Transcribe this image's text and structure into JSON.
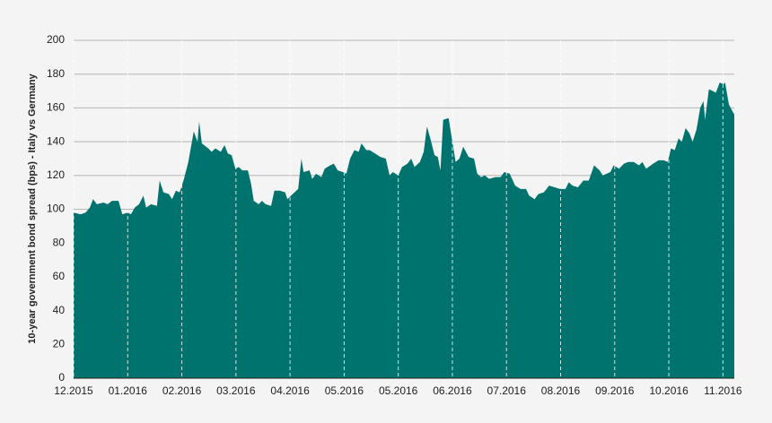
{
  "chart_data": {
    "type": "area",
    "ylabel": "10-year government bond  spread (bps) - Italy vs Germany",
    "color": "#00736f",
    "grid": true,
    "xlim": [
      0,
      12.21
    ],
    "ylim": [
      0,
      200
    ],
    "yticks": [
      0,
      20,
      40,
      60,
      80,
      100,
      120,
      140,
      160,
      180,
      200
    ],
    "xticks": [
      {
        "value": 0,
        "label": "12.2015"
      },
      {
        "value": 1,
        "label": "01.2016"
      },
      {
        "value": 2,
        "label": "02.2016"
      },
      {
        "value": 3,
        "label": "03.2016"
      },
      {
        "value": 4,
        "label": "04.2016"
      },
      {
        "value": 5,
        "label": "05.2016"
      },
      {
        "value": 6,
        "label": "05.2016"
      },
      {
        "value": 7,
        "label": "06.2016"
      },
      {
        "value": 8,
        "label": "07.2016"
      },
      {
        "value": 9,
        "label": "08.2016"
      },
      {
        "value": 10,
        "label": "09.2016"
      },
      {
        "value": 11,
        "label": "10.2016"
      },
      {
        "value": 12,
        "label": "11.2016"
      }
    ],
    "x": [
      0,
      0.13,
      0.22,
      0.3,
      0.36,
      0.43,
      0.55,
      0.63,
      0.71,
      0.83,
      0.9,
      1.0,
      1.06,
      1.13,
      1.21,
      1.29,
      1.34,
      1.43,
      1.54,
      1.59,
      1.66,
      1.76,
      1.82,
      1.89,
      1.96,
      2.04,
      2.12,
      2.22,
      2.29,
      2.32,
      2.37,
      2.49,
      2.55,
      2.62,
      2.72,
      2.79,
      2.85,
      2.92,
      2.99,
      3.05,
      3.12,
      3.22,
      3.28,
      3.33,
      3.42,
      3.48,
      3.55,
      3.65,
      3.71,
      3.81,
      3.91,
      3.95,
      4.05,
      4.15,
      4.21,
      4.25,
      4.36,
      4.41,
      4.48,
      4.58,
      4.64,
      4.74,
      4.81,
      4.88,
      4.98,
      5.04,
      5.11,
      5.19,
      5.27,
      5.32,
      5.41,
      5.47,
      5.57,
      5.67,
      5.77,
      5.84,
      5.9,
      6.0,
      6.07,
      6.17,
      6.24,
      6.3,
      6.4,
      6.47,
      6.53,
      6.6,
      6.67,
      6.73,
      6.78,
      6.83,
      6.93,
      7.0,
      7.06,
      7.13,
      7.2,
      7.3,
      7.4,
      7.46,
      7.53,
      7.6,
      7.68,
      7.79,
      7.89,
      7.96,
      8.06,
      8.16,
      8.26,
      8.36,
      8.42,
      8.52,
      8.59,
      8.69,
      8.79,
      8.89,
      8.99,
      9.09,
      9.15,
      9.22,
      9.32,
      9.42,
      9.52,
      9.62,
      9.72,
      9.78,
      9.92,
      9.98,
      10.08,
      10.17,
      10.25,
      10.35,
      10.45,
      10.51,
      10.58,
      10.71,
      10.81,
      10.91,
      10.98,
      11.04,
      11.11,
      11.18,
      11.24,
      11.31,
      11.38,
      11.44,
      11.51,
      11.58,
      11.64,
      11.67,
      11.74,
      11.81,
      11.87,
      11.94,
      12.01,
      12.04,
      12.11,
      12.21
    ],
    "values": [
      98,
      97,
      98,
      101,
      106,
      103,
      104,
      103,
      105,
      105,
      97,
      98,
      97,
      101,
      103,
      108,
      101,
      103,
      102,
      117,
      110,
      109,
      106,
      111,
      110,
      118,
      128,
      146,
      140,
      152,
      139,
      136,
      134,
      136,
      134,
      138,
      133,
      132,
      124,
      125,
      123,
      123,
      115,
      105,
      103,
      105,
      103,
      102,
      111,
      111,
      110,
      106,
      109,
      112,
      130,
      122,
      123,
      118,
      121,
      119,
      124,
      126,
      127,
      123,
      122,
      121,
      130,
      135,
      134,
      139,
      135,
      135,
      133,
      131,
      130,
      120,
      122,
      120,
      125,
      127,
      130,
      125,
      128,
      134,
      149,
      141,
      132,
      131,
      123,
      153,
      154,
      140,
      128,
      130,
      137,
      131,
      130,
      121,
      119,
      120,
      118,
      119,
      119,
      122,
      121,
      114,
      112,
      112,
      108,
      106,
      109,
      110,
      114,
      113,
      112,
      112,
      116,
      114,
      113,
      117,
      117,
      126,
      123,
      120,
      122,
      126,
      124,
      127,
      128,
      128,
      126,
      128,
      124,
      127,
      129,
      129,
      128,
      136,
      135,
      142,
      140,
      148,
      145,
      140,
      147,
      160,
      164,
      153,
      171,
      170,
      169,
      175,
      174,
      175,
      162,
      156
    ]
  }
}
